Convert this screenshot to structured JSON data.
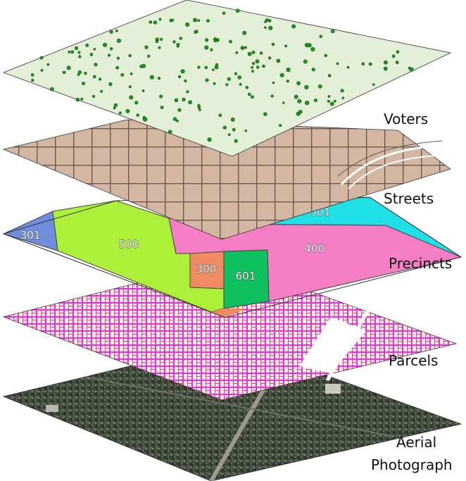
{
  "layers": [
    {
      "name": "Voters"
    },
    {
      "name": "Streets"
    },
    {
      "name": "Precincts"
    },
    {
      "name": "Parcels"
    },
    {
      "name": "Aerial Photograph",
      "line1": "Aerial",
      "line2": "Photograph"
    }
  ],
  "precincts": [
    "301",
    "500",
    "300",
    "601",
    "400",
    "501"
  ],
  "colors": {
    "voters_bg": "#e3efd6",
    "voter_dot": "#1a9a1a",
    "streets_bg": "#d3b7a2",
    "street_line": "#6b5a52",
    "precinct_301": "#6f8fde",
    "precinct_500": "#adf03a",
    "precinct_300": "#f08a60",
    "precinct_601": "#10c060",
    "precinct_400": "#f57ec4",
    "precinct_501": "#1ee0e6",
    "parcels_bg": "#fbf6c4",
    "parcel_line": "#ee28ee",
    "aerial_bg": "#3f4a3a"
  }
}
